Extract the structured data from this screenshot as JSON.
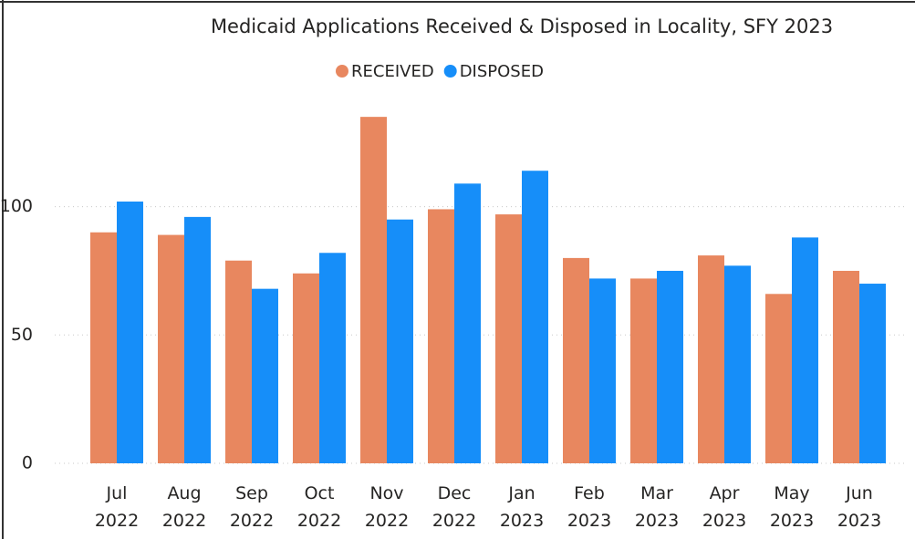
{
  "chart_data": {
    "type": "bar",
    "title": "Medicaid Applications Received & Disposed in Locality, SFY 2023",
    "categories": [
      "Jul 2022",
      "Aug 2022",
      "Sep 2022",
      "Oct 2022",
      "Nov 2022",
      "Dec 2022",
      "Jan 2023",
      "Feb 2023",
      "Mar 2023",
      "Apr 2023",
      "May 2023",
      "Jun 2023"
    ],
    "series": [
      {
        "name": "RECEIVED",
        "color": "#e8875f",
        "values": [
          90,
          89,
          79,
          74,
          135,
          99,
          97,
          80,
          72,
          81,
          66,
          75
        ]
      },
      {
        "name": "DISPOSED",
        "color": "#168ef9",
        "values": [
          102,
          96,
          68,
          82,
          95,
          109,
          114,
          72,
          75,
          77,
          88,
          70
        ]
      }
    ],
    "ylim": [
      0,
      145
    ],
    "yticks": [
      0,
      50,
      100
    ],
    "grid": true,
    "legend": "top"
  }
}
